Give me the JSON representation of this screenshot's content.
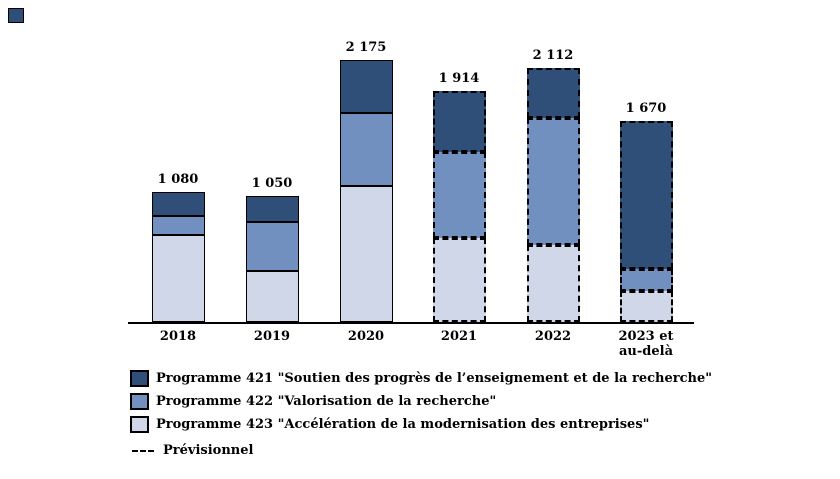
{
  "chart_data": {
    "type": "bar",
    "stacked": true,
    "title": "",
    "xlabel": "",
    "ylabel": "",
    "grid": false,
    "legend_position": "bottom-left",
    "categories": [
      "2018",
      "2019",
      "2020",
      "2021",
      "2022",
      "2023 et\nau-delà"
    ],
    "totals_labels": [
      "1 080",
      "1 050",
      "2 175",
      "1 914",
      "2 112",
      "1 670"
    ],
    "totals_values": [
      1080,
      1050,
      2175,
      1914,
      2112,
      1670
    ],
    "ylim": [
      0,
      2300
    ],
    "series": [
      {
        "name": "Programme 423 \"Accélération de la modernisation des entreprises\"",
        "color": "#cfd7e8",
        "values": [
          722,
          427,
          1129,
          700,
          639,
          260
        ]
      },
      {
        "name": "Programme 422 \"Valorisation de la recherche\"",
        "color": "#7190c0",
        "values": [
          158,
          407,
          606,
          714,
          1054,
          180
        ]
      },
      {
        "name": "Programme 421 \"Soutien des progrès de l’enseignement et de la recherche\"",
        "color": "#2f4f78",
        "values": [
          200,
          216,
          440,
          500,
          419,
          1230
        ]
      }
    ],
    "forecast_flags": [
      false,
      false,
      false,
      true,
      true,
      true
    ],
    "legend": [
      {
        "color": "#2f4f78",
        "label": "Programme 421 \"Soutien des progrès de l’enseignement  et de la recherche\""
      },
      {
        "color": "#7190c0",
        "label": "Programme 422 \"Valorisation de la recherche\""
      },
      {
        "color": "#cfd7e8",
        "label": "Programme 423 \"Accélération de la modernisation des entreprises\""
      }
    ],
    "forecast_label": "Prévisionnel"
  }
}
